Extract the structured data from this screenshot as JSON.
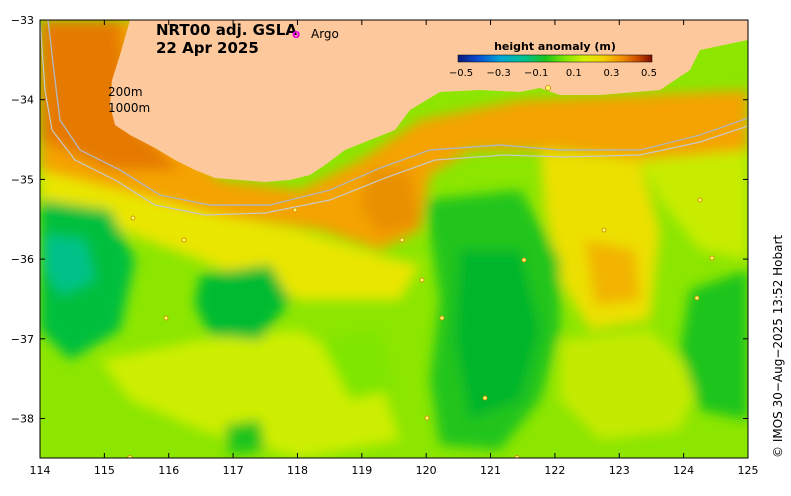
{
  "title": {
    "line1": "NRT00 adj. GSLA",
    "line2": "22 Apr 2025"
  },
  "legend": {
    "argo_marker": "o",
    "argo_label": "Argo",
    "argo_color": "#e600e6"
  },
  "colorbar": {
    "title": "height anomaly (m)",
    "ticks": [
      "−0.5",
      "−0.3",
      "−0.1",
      "0.1",
      "0.3",
      "0.5"
    ],
    "colors": [
      "#0b1a7a",
      "#0a4bd1",
      "#00a6d6",
      "#00c28a",
      "#1cc41c",
      "#7fe600",
      "#d7f000",
      "#f3d100",
      "#f08a00",
      "#c94a00",
      "#7a0d00"
    ]
  },
  "contours": {
    "label_200": "200m",
    "label_1000": "1000m"
  },
  "axes": {
    "x_ticks": [
      "114",
      "115",
      "116",
      "117",
      "118",
      "119",
      "120",
      "121",
      "122",
      "123",
      "124",
      "125"
    ],
    "y_ticks": [
      "−33",
      "−34",
      "−35",
      "−36",
      "−37",
      "−38"
    ]
  },
  "credit": "© IMOS 30−Aug−2025 13:52 Hobart",
  "colors": {
    "land": "#fdc99c",
    "field_base": "#8ce600"
  }
}
